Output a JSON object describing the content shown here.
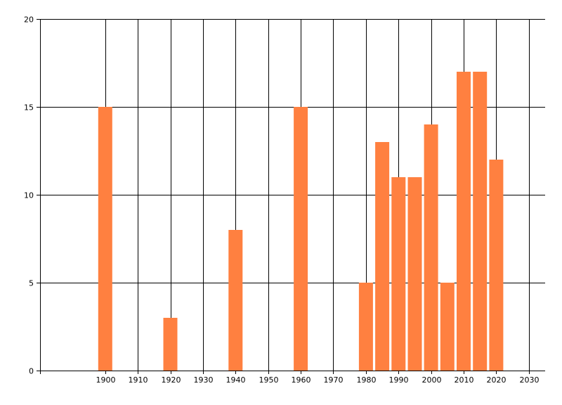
{
  "chart_data": {
    "type": "bar",
    "x": [
      1900,
      1920,
      1940,
      1960,
      1980,
      1985,
      1990,
      1995,
      2000,
      2005,
      2010,
      2015,
      2020
    ],
    "values": [
      15,
      3,
      8,
      15,
      5,
      13,
      11,
      11,
      14,
      5,
      17,
      17,
      12
    ],
    "title": "",
    "xlabel": "",
    "ylabel": "",
    "xlim": [
      1880,
      2035
    ],
    "ylim": [
      0,
      20
    ],
    "x_ticks": [
      1900,
      1910,
      1920,
      1930,
      1940,
      1950,
      1960,
      1970,
      1980,
      1990,
      2000,
      2010,
      2020,
      2030
    ],
    "y_ticks": [
      0,
      5,
      10,
      15,
      20
    ],
    "grid": true,
    "legend": "none",
    "bar_color": "#FF8040",
    "grid_color": "#000000"
  }
}
